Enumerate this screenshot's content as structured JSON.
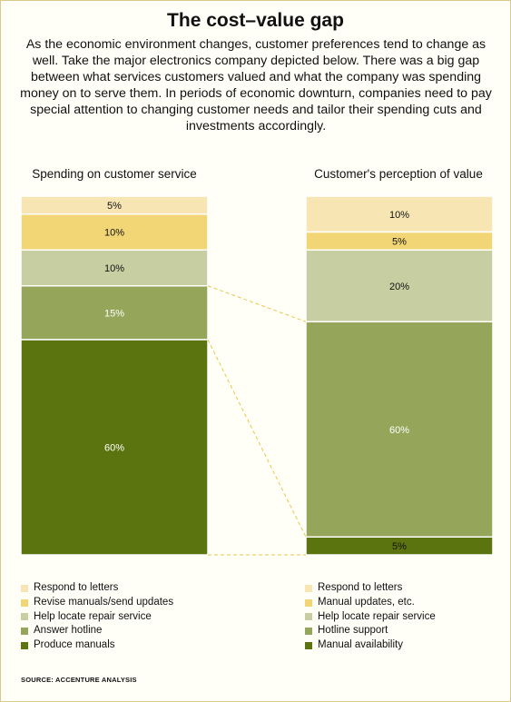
{
  "title": "The cost–value gap",
  "intro": "As the economic environment changes, customer preferences tend to change as well. Take the major electronics company depicted below. There was a big gap between what services customers valued and what the company was spending money on to serve them. In periods of economic downturn, companies need to pay special attention to changing customer needs and tailor their spending cuts and investments accordingly.",
  "source": "SOURCE: ACCENTURE ANALYSIS",
  "chart_data": {
    "type": "bar",
    "stacked": true,
    "percent_stacked": true,
    "ylim": [
      0,
      100
    ],
    "grid": false,
    "charts": [
      {
        "title": "Spending on customer service",
        "segments": [
          {
            "label": "Respond to letters",
            "value": 5,
            "data_label": "5%",
            "color": "#f7e6b3"
          },
          {
            "label": "Revise manuals/send updates",
            "value": 10,
            "data_label": "10%",
            "color": "#f2d675"
          },
          {
            "label": "Help locate repair service",
            "value": 10,
            "data_label": "10%",
            "color": "#c7cea2"
          },
          {
            "label": "Answer hotline",
            "value": 15,
            "data_label": "15%",
            "color": "#95a65a"
          },
          {
            "label": "Produce manuals",
            "value": 60,
            "data_label": "60%",
            "color": "#5b7410"
          }
        ]
      },
      {
        "title": "Customer's perception of value",
        "segments": [
          {
            "label": "Respond to letters",
            "value": 10,
            "data_label": "10%",
            "color": "#f7e6b3"
          },
          {
            "label": "Manual updates, etc.",
            "value": 5,
            "data_label": "5%",
            "color": "#f2d675"
          },
          {
            "label": "Help locate repair service",
            "value": 20,
            "data_label": "20%",
            "color": "#c7cea2"
          },
          {
            "label": "Hotline support",
            "value": 60,
            "data_label": "60%",
            "color": "#95a65a"
          },
          {
            "label": "Manual availability",
            "value": 5,
            "data_label": "5%",
            "color": "#5b7410"
          }
        ]
      }
    ]
  },
  "legend_left": [
    {
      "label": "Respond to letters",
      "color": "#f7e6b3"
    },
    {
      "label": "Revise manuals/send updates",
      "color": "#f2d675"
    },
    {
      "label": "Help locate repair service",
      "color": "#c7cea2"
    },
    {
      "label": "Answer hotline",
      "color": "#95a65a"
    },
    {
      "label": "Produce manuals",
      "color": "#5b7410"
    }
  ],
  "legend_right": [
    {
      "label": "Respond to letters",
      "color": "#f7e6b3"
    },
    {
      "label": "Manual updates, etc.",
      "color": "#f2d675"
    },
    {
      "label": "Help locate repair service",
      "color": "#c7cea2"
    },
    {
      "label": "Hotline support",
      "color": "#95a65a"
    },
    {
      "label": "Manual availability",
      "color": "#5b7410"
    }
  ],
  "connector_color": "#e8c84a"
}
